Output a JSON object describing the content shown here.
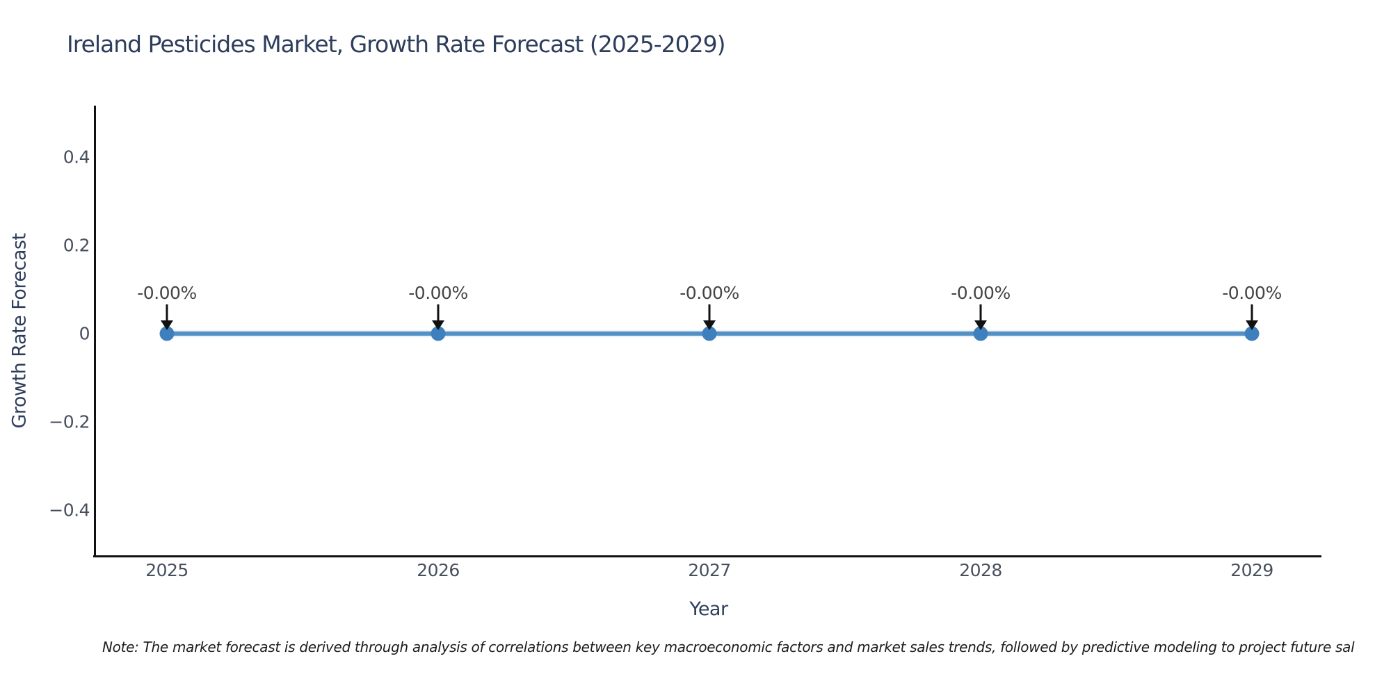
{
  "page": {
    "background": "#ffffff"
  },
  "chart_data": {
    "type": "line",
    "title": "Ireland Pesticides Market, Growth Rate Forecast (2025-2029)",
    "xlabel": "Year",
    "ylabel": "Growth Rate Forecast",
    "x": [
      2025,
      2026,
      2027,
      2028,
      2029
    ],
    "series": [
      {
        "name": "Growth Rate Forecast",
        "values": [
          0,
          0,
          0,
          0,
          0
        ]
      }
    ],
    "point_annotations": [
      "-0.00%",
      "-0.00%",
      "-0.00%",
      "-0.00%",
      "-0.00%"
    ],
    "xtick_labels": [
      "2025",
      "2026",
      "2027",
      "2028",
      "2029"
    ],
    "ytick_values": [
      0.4,
      0.2,
      0,
      -0.2,
      -0.4
    ],
    "ytick_labels": [
      "0.4",
      "0.2",
      "0",
      "−0.2",
      "−0.4"
    ],
    "ylim": [
      -0.5,
      0.5
    ],
    "grid": false,
    "legend_position": "none",
    "colors": {
      "line": "#5390c6",
      "marker": "#3e80bd",
      "axis": "#111111",
      "title_text": "#2e3d5c",
      "tick_text": "#474e5d",
      "annotation_text": "#444444",
      "note_text": "#1c1c1c"
    },
    "note": "Note: The market forecast is derived through analysis of correlations between key macroeconomic factors and market sales trends, followed by predictive modeling to project future sal"
  }
}
